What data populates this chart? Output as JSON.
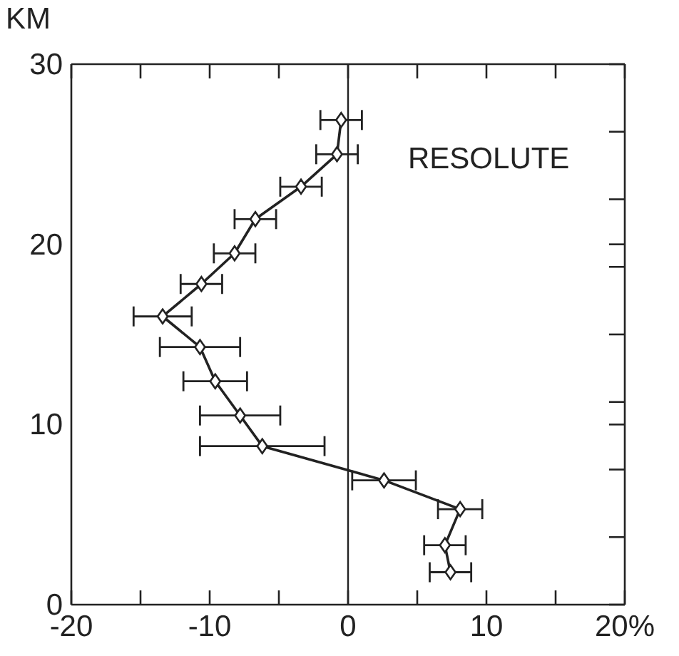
{
  "chart_data": {
    "type": "line",
    "ylabel": "KM",
    "annotations": [
      "RESOLUTE"
    ],
    "x": [
      -0.5,
      -0.8,
      -3.4,
      -6.7,
      -8.2,
      -10.6,
      -13.4,
      -10.7,
      -9.6,
      -7.8,
      -6.2,
      2.6,
      8.1,
      7.0,
      7.4
    ],
    "series": [
      {
        "color": "#222222",
        "values": [
          26.9,
          25.0,
          23.2,
          21.4,
          19.5,
          17.8,
          16.0,
          14.3,
          12.4,
          10.5,
          8.8,
          6.9,
          5.3,
          3.3,
          1.8
        ],
        "xerrors": [
          1.5,
          1.5,
          1.5,
          1.5,
          1.5,
          1.5,
          2.1,
          2.9,
          2.3,
          2.9,
          4.5,
          2.3,
          1.6,
          1.5,
          1.5
        ]
      }
    ],
    "xlim": [
      -20,
      20
    ],
    "xticks": [
      -20,
      {
        "value": -15,
        "label": null
      },
      -10,
      {
        "value": -5,
        "label": null
      },
      0,
      {
        "value": 5,
        "label": null
      },
      10,
      {
        "value": 15,
        "label": null
      },
      {
        "value": 20,
        "label": "20%"
      }
    ],
    "ylim": [
      0,
      30
    ],
    "yticks": [
      0,
      {
        "value": 3.75,
        "label": null
      },
      {
        "value": 7.5,
        "label": null
      },
      10,
      {
        "value": 11.25,
        "label": null
      },
      {
        "value": 15,
        "label": null
      },
      {
        "value": 18.75,
        "label": null
      },
      20,
      {
        "value": 22.5,
        "label": null
      },
      {
        "value": 26.25,
        "label": null
      },
      30
    ],
    "ref_lines": [
      {
        "axis": "x",
        "value": 0,
        "color": "#222222"
      }
    ],
    "marker": "diamond",
    "line_style": "solid"
  }
}
